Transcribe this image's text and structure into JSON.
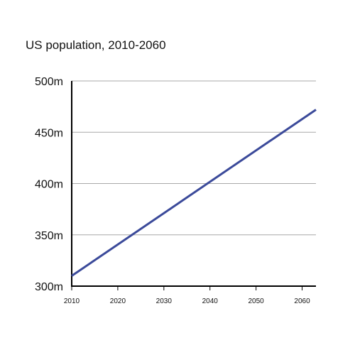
{
  "chart_data": {
    "type": "line",
    "title": "US population, 2010-2060",
    "xlabel": "",
    "ylabel": "",
    "x_ticks": [
      2010,
      2020,
      2030,
      2040,
      2050,
      2060
    ],
    "y_ticks": [
      300,
      350,
      400,
      450,
      500
    ],
    "y_tick_labels": [
      "300m",
      "350m",
      "400m",
      "450m",
      "500m"
    ],
    "xlim": [
      2010,
      2063
    ],
    "ylim": [
      300,
      500
    ],
    "grid": "horizontal",
    "series": [
      {
        "x": [
          2010,
          2063
        ],
        "y": [
          310,
          472
        ]
      }
    ]
  },
  "colors": {
    "line": "#3b4a9a",
    "grid": "#a9a9a9",
    "axis": "#000000"
  }
}
